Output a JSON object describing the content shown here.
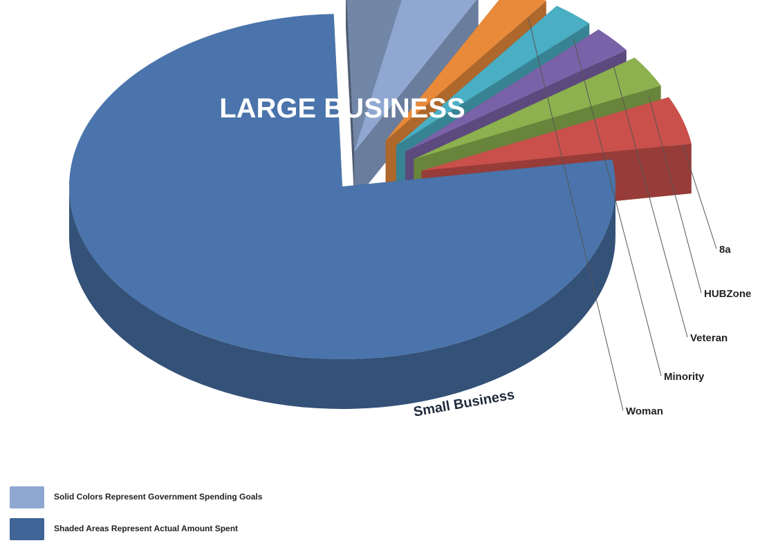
{
  "chart_data": {
    "type": "pie",
    "style": "3d-exploded",
    "large_label": "LARGE BUSINESS",
    "small_label": "Small Business",
    "slices": [
      {
        "name": "LARGE BUSINESS",
        "value": 77,
        "color": "#4a74ab"
      },
      {
        "name": "Small Business",
        "value": 8,
        "color": "#8fa7d1"
      },
      {
        "name": "Woman",
        "value": 2.5,
        "color": "#e88a3a"
      },
      {
        "name": "Minority",
        "value": 2.5,
        "color": "#4aaec4"
      },
      {
        "name": "Veteran",
        "value": 2.5,
        "color": "#7a62a8"
      },
      {
        "name": "HUBZone",
        "value": 3,
        "color": "#8cb14e"
      },
      {
        "name": "8a",
        "value": 4.5,
        "color": "#c9504b"
      }
    ],
    "legend": [
      {
        "label": "Solid Colors Represent Government Spending Goals",
        "color": "#8fa7d1"
      },
      {
        "label": "Shaded Areas Represent Actual Amount Spent",
        "color": "#3f6496"
      }
    ],
    "legend_position": "bottom-left"
  }
}
